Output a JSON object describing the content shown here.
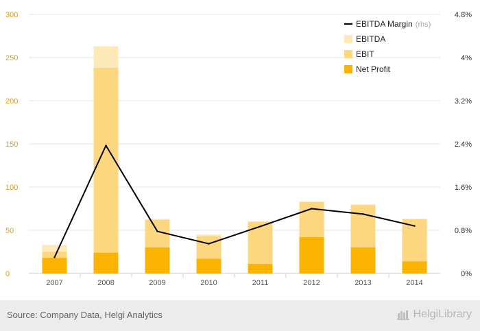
{
  "chart_data": {
    "type": "bar",
    "categories": [
      "2007",
      "2008",
      "2009",
      "2010",
      "2011",
      "2012",
      "2013",
      "2014"
    ],
    "series": [
      {
        "name": "EBITDA",
        "type": "bar",
        "axis": "left",
        "color": "#fde8b8",
        "values": [
          33,
          263,
          63,
          45,
          60,
          83,
          80,
          63
        ]
      },
      {
        "name": "EBIT",
        "type": "bar",
        "axis": "left",
        "color": "#fcd780",
        "values": [
          25,
          238,
          62,
          43,
          60,
          83,
          79,
          63
        ]
      },
      {
        "name": "Net Profit",
        "type": "bar",
        "axis": "left",
        "color": "#f9b300",
        "values": [
          18,
          24,
          30,
          17,
          11,
          42,
          30,
          14
        ]
      },
      {
        "name": "EBITDA Margin",
        "type": "line",
        "axis": "right",
        "color": "#000000",
        "values": [
          0.3,
          2.37,
          0.78,
          0.55,
          0.87,
          1.2,
          1.1,
          0.88
        ]
      }
    ],
    "left_axis": {
      "ylim": [
        0,
        300
      ],
      "ticks": [
        "0",
        "50",
        "100",
        "150",
        "200",
        "250",
        "300"
      ]
    },
    "right_axis": {
      "ylim": [
        0,
        4.8
      ],
      "ticks": [
        "0%",
        "0.8%",
        "1.6%",
        "2.4%",
        "3.2%",
        "4%",
        "4.8%"
      ]
    },
    "legend": {
      "placement": "top-right",
      "items": [
        {
          "label": "EBITDA Margin",
          "suffix": "(rhs)",
          "kind": "line",
          "color": "#000000"
        },
        {
          "label": "EBITDA",
          "kind": "box",
          "color": "#fde8b8"
        },
        {
          "label": "EBIT",
          "kind": "box",
          "color": "#fcd780"
        },
        {
          "label": "Net Profit",
          "kind": "box",
          "color": "#f9b300"
        }
      ]
    },
    "colors": {
      "left_axis_text": "#e0a000",
      "grid": "#e6e6e6"
    },
    "grid": true
  },
  "footer": {
    "source": "Source: Company Data, Helgi Analytics",
    "brand": "HelgiLibrary"
  }
}
